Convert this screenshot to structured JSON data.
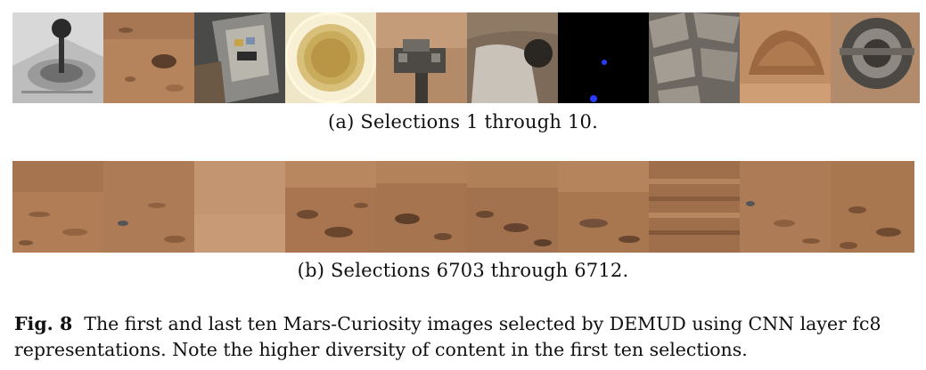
{
  "subfigure_a": {
    "label": "(a) Selections 1 through 10.",
    "tiles": [
      {
        "name": "joystick-calibration-target"
      },
      {
        "name": "martian-terrain-rock"
      },
      {
        "name": "rover-instrument-panel"
      },
      {
        "name": "instrument-inlet-mesh"
      },
      {
        "name": "rover-mast-hardware"
      },
      {
        "name": "drill-hole-surface"
      },
      {
        "name": "dark-frame-blue-dots"
      },
      {
        "name": "rover-wheel-tread"
      },
      {
        "name": "rock-outcrop"
      },
      {
        "name": "rover-wheel-closeup"
      }
    ]
  },
  "subfigure_b": {
    "label": "(b) Selections 6703 through 6712.",
    "tiles": [
      {
        "name": "terrain-1"
      },
      {
        "name": "terrain-2"
      },
      {
        "name": "terrain-3"
      },
      {
        "name": "terrain-4"
      },
      {
        "name": "terrain-5"
      },
      {
        "name": "terrain-6"
      },
      {
        "name": "terrain-7"
      },
      {
        "name": "terrain-8"
      },
      {
        "name": "terrain-9"
      },
      {
        "name": "terrain-10"
      }
    ]
  },
  "caption": {
    "label": "Fig. 8",
    "text": "The first and last ten Mars-Curiosity images selected by DEMUD using CNN layer fc8 representations. Note the higher diversity of content in the first ten selections."
  }
}
